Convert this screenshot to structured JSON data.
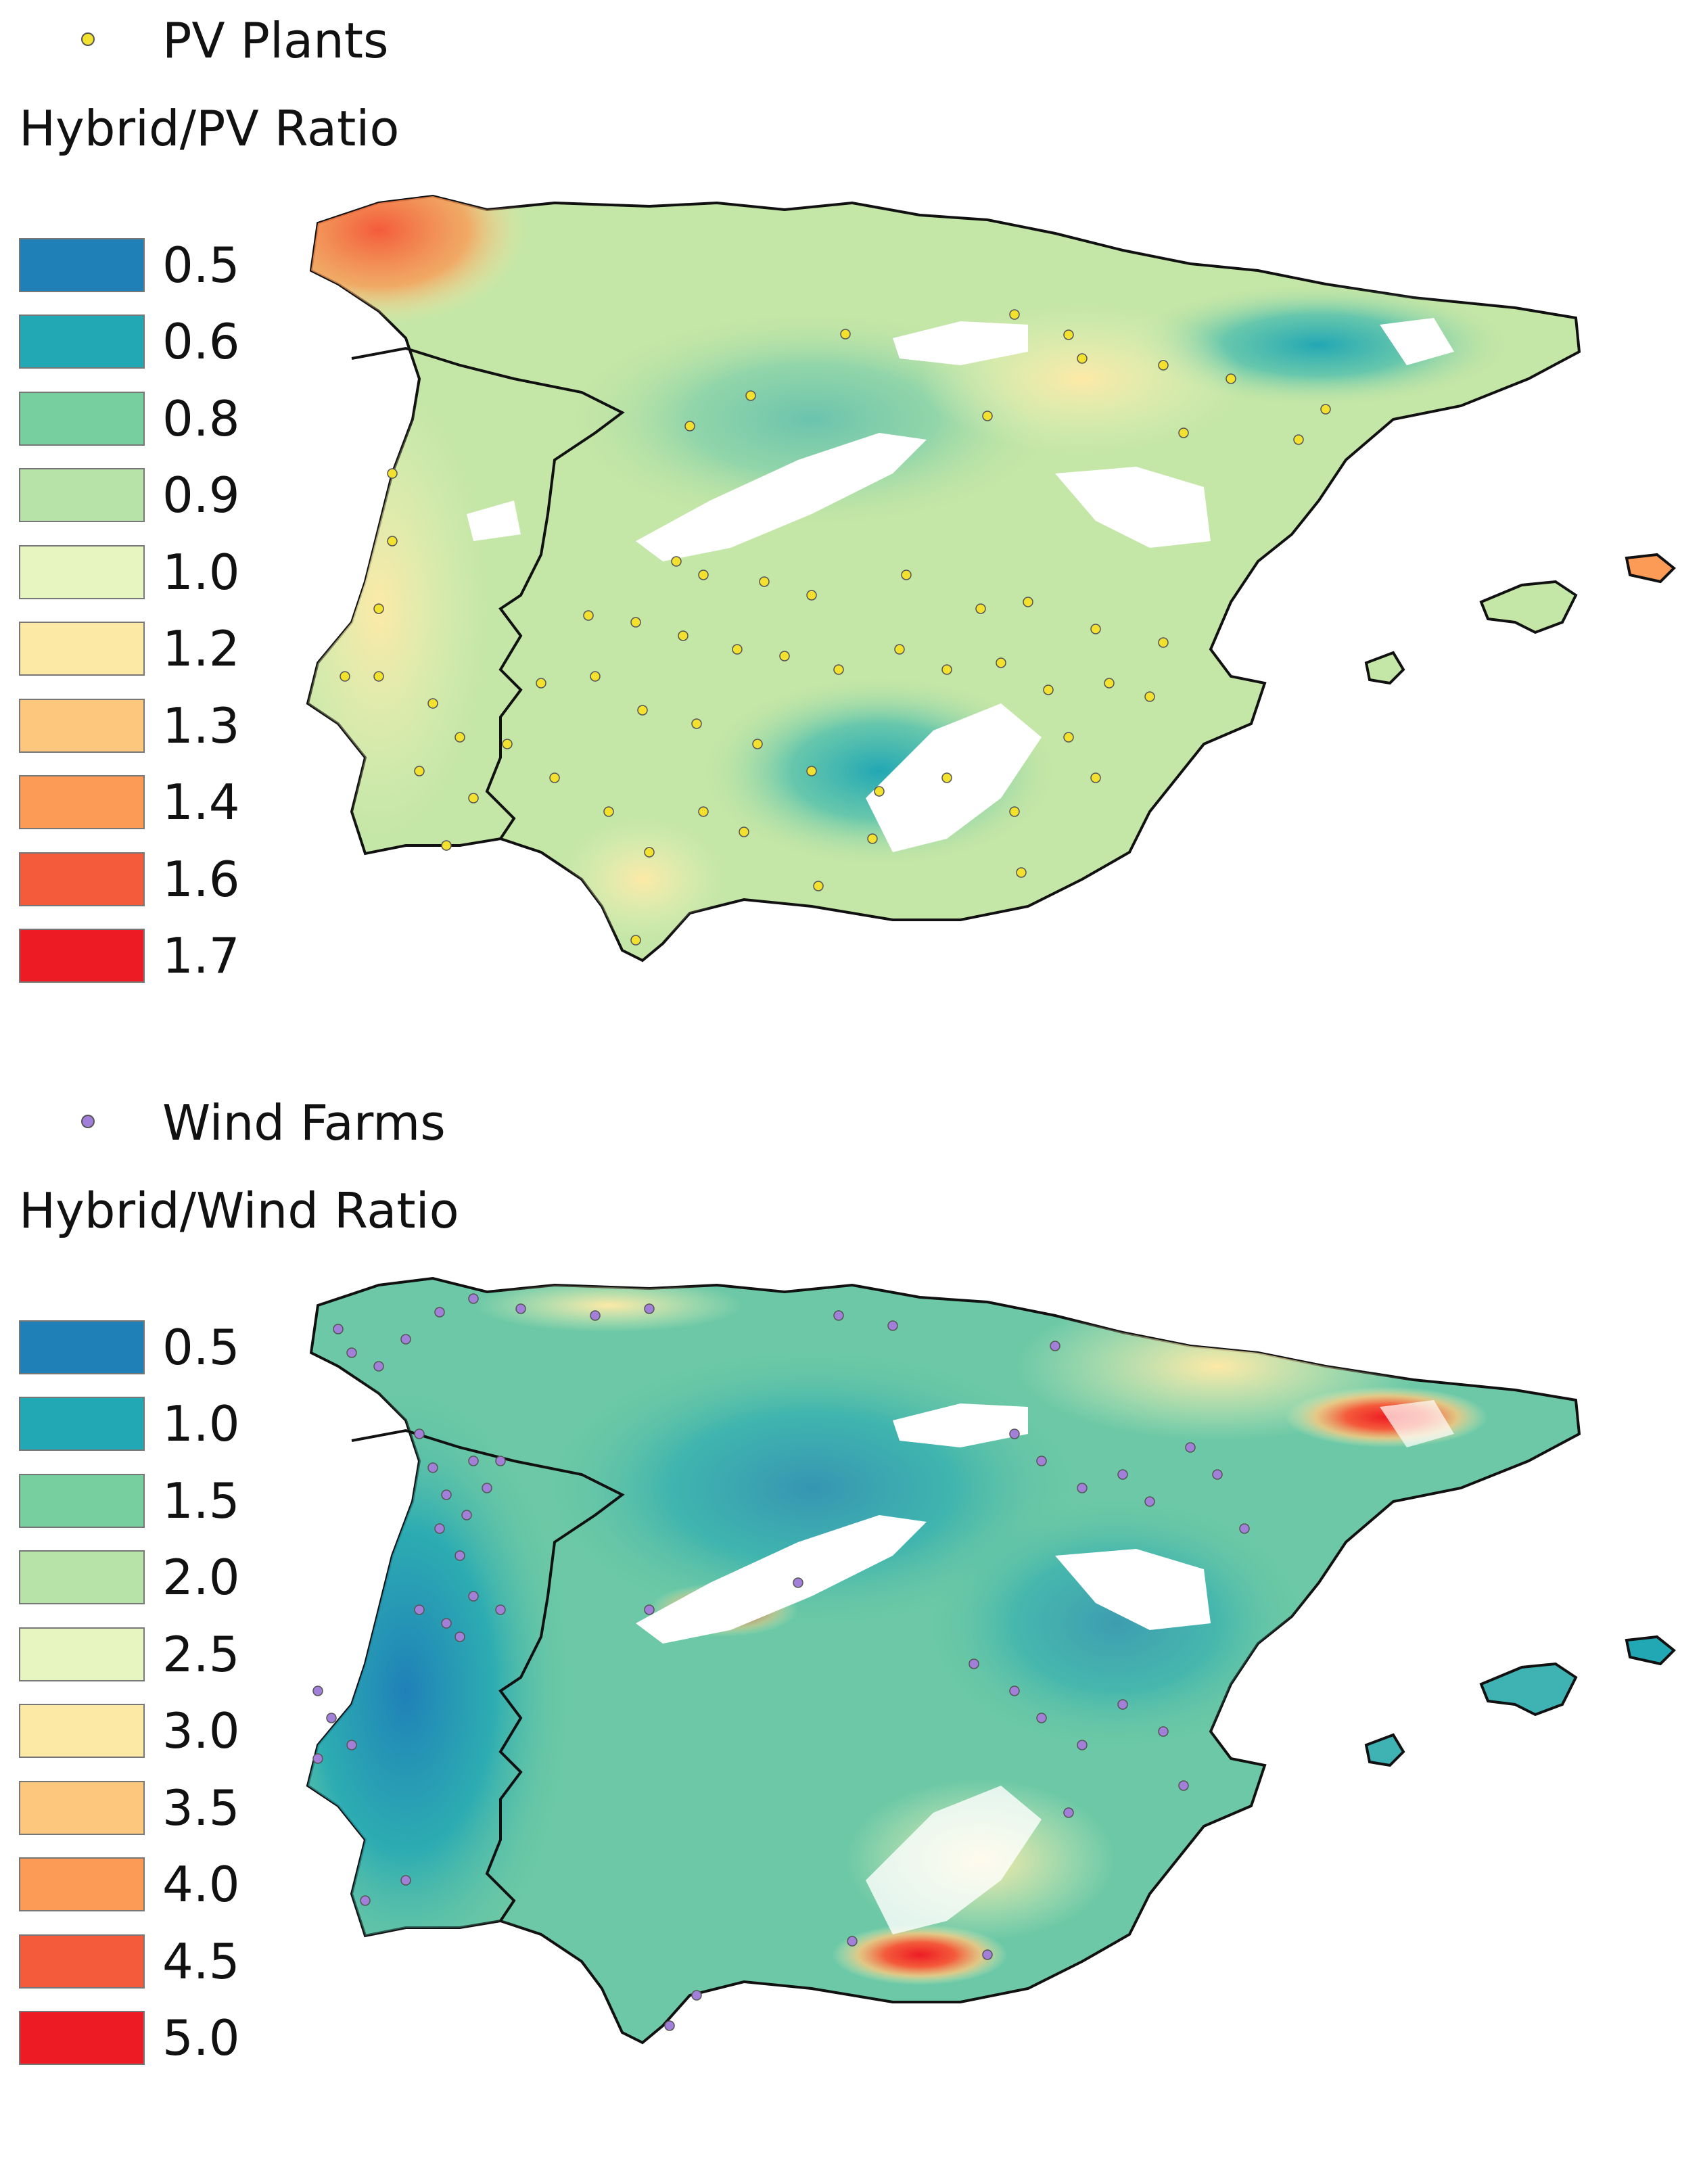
{
  "panels": [
    {
      "id": "pv",
      "point_layer_label": "PV Plants",
      "point_color": "#f2e12e",
      "ratio_title": "Hybrid/PV Ratio",
      "legend": [
        {
          "value": "0.5",
          "color": "#1f80b8"
        },
        {
          "value": "0.6",
          "color": "#22a7b4"
        },
        {
          "value": "0.8",
          "color": "#77cfa0"
        },
        {
          "value": "0.9",
          "color": "#b7e2a8"
        },
        {
          "value": "1.0",
          "color": "#e7f5c0"
        },
        {
          "value": "1.2",
          "color": "#fde9a6"
        },
        {
          "value": "1.3",
          "color": "#fdc77d"
        },
        {
          "value": "1.4",
          "color": "#fb9b55"
        },
        {
          "value": "1.6",
          "color": "#f45b3b"
        },
        {
          "value": "1.7",
          "color": "#ed1c24"
        }
      ]
    },
    {
      "id": "wind",
      "point_layer_label": "Wind Farms",
      "point_color": "#a27fd8",
      "ratio_title": "Hybrid/Wind Ratio",
      "legend": [
        {
          "value": "0.5",
          "color": "#1f80b8"
        },
        {
          "value": "1.0",
          "color": "#22a7b4"
        },
        {
          "value": "1.5",
          "color": "#77cfa0"
        },
        {
          "value": "2.0",
          "color": "#b7e2a8"
        },
        {
          "value": "2.5",
          "color": "#e7f5c0"
        },
        {
          "value": "3.0",
          "color": "#fde9a6"
        },
        {
          "value": "3.5",
          "color": "#fdc77d"
        },
        {
          "value": "4.0",
          "color": "#fb9b55"
        },
        {
          "value": "4.5",
          "color": "#f45b3b"
        },
        {
          "value": "5.0",
          "color": "#ed1c24"
        }
      ]
    }
  ]
}
